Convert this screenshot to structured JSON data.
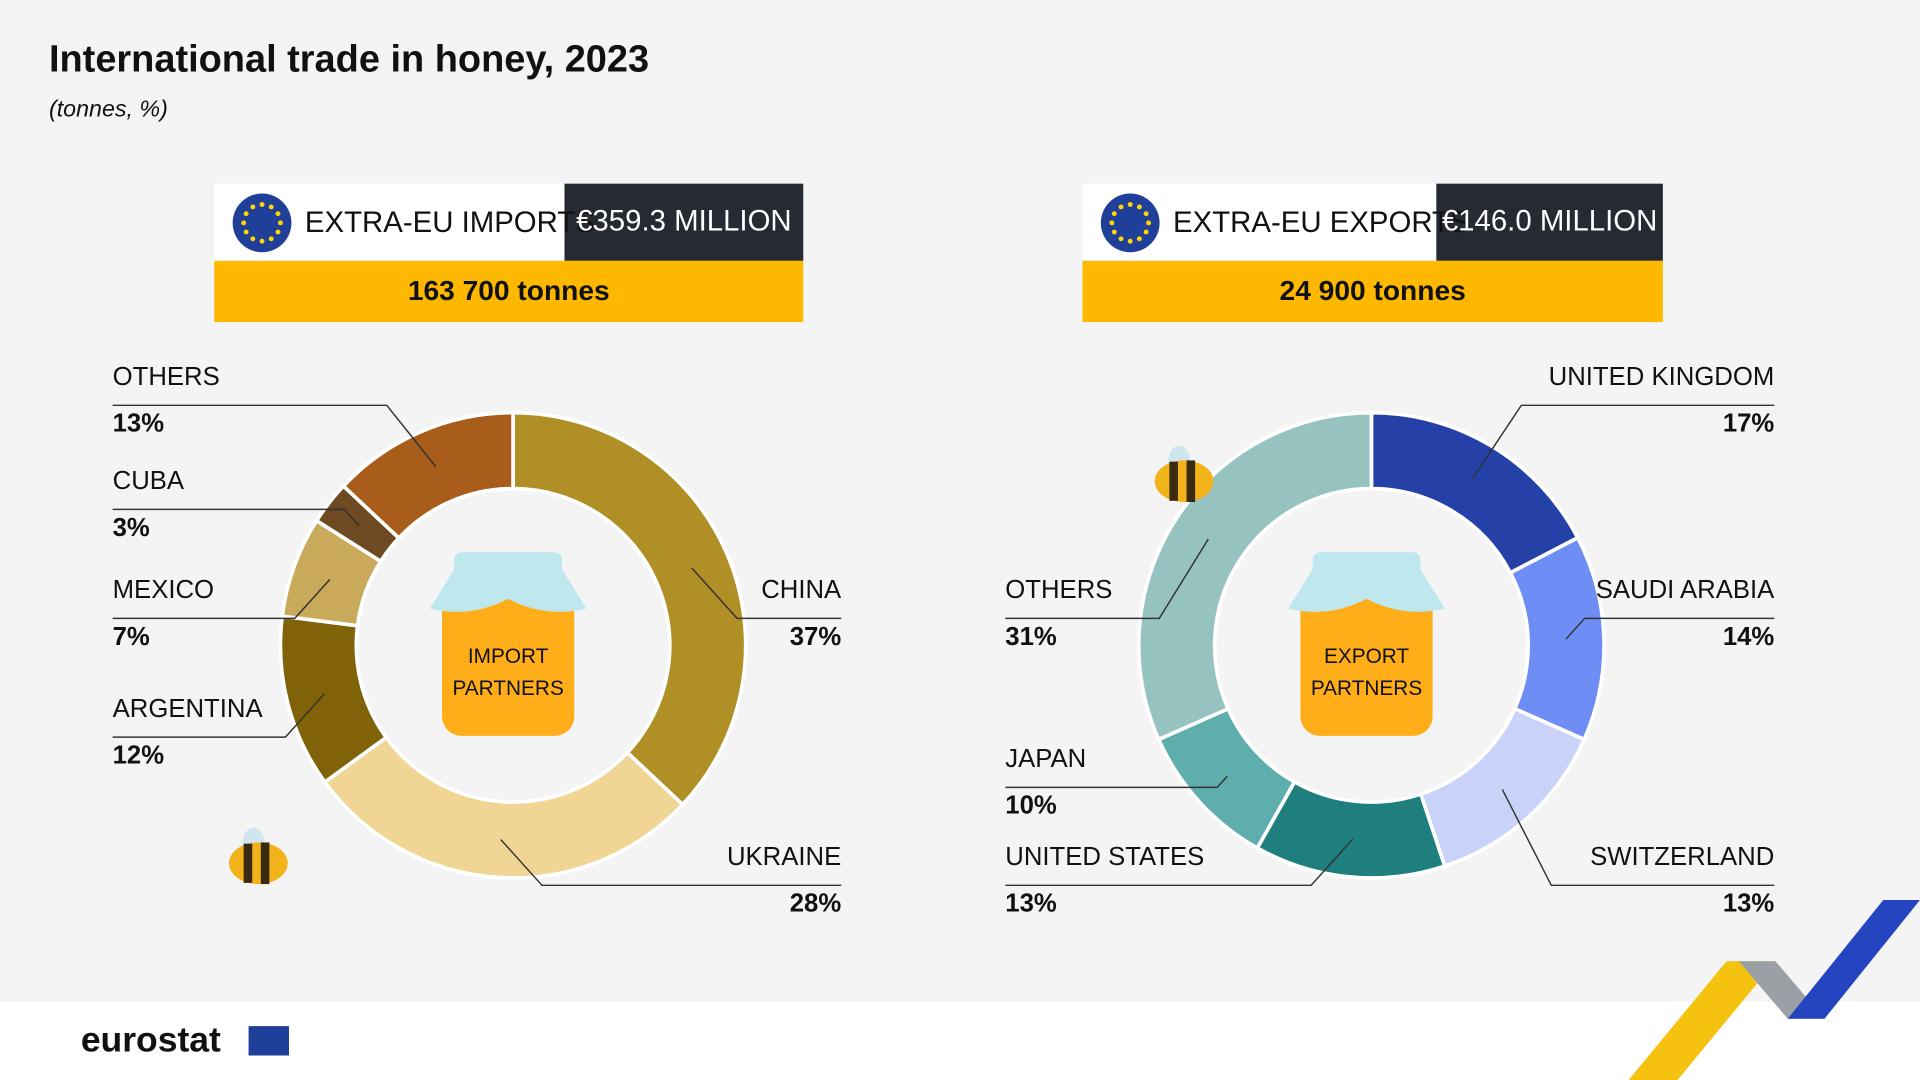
{
  "title": "International trade in honey, 2023",
  "subtitle": "(tonnes, %)",
  "logo": "eurostat",
  "chart_data": [
    {
      "type": "donut",
      "header": "EXTRA-EU IMPORTS",
      "amount": "€359.3 MILLION",
      "volume": "163 700 tonnes",
      "center_label": [
        "IMPORT",
        "PARTNERS"
      ],
      "categories": [
        "CHINA",
        "UKRAINE",
        "ARGENTINA",
        "MEXICO",
        "CUBA",
        "OTHERS"
      ],
      "values": [
        37,
        28,
        12,
        7,
        3,
        13
      ],
      "value_labels": [
        "37%",
        "28%",
        "12%",
        "7%",
        "3%",
        "13%"
      ],
      "colors": [
        "#b08f26",
        "#f0d594",
        "#806208",
        "#c9aa5a",
        "#6e4a22",
        "#a95d1b"
      ]
    },
    {
      "type": "donut",
      "header": "EXTRA-EU EXPORTS",
      "amount": "€146.0 MILLION",
      "volume": "24 900 tonnes",
      "center_label": [
        "EXPORT",
        "PARTNERS"
      ],
      "categories": [
        "UNITED KINGDOM",
        "SAUDI ARABIA",
        "SWITZERLAND",
        "UNITED STATES",
        "JAPAN",
        "OTHERS"
      ],
      "values": [
        17,
        14,
        13,
        13,
        10,
        31
      ],
      "value_labels": [
        "17%",
        "14%",
        "13%",
        "13%",
        "10%",
        "31%"
      ],
      "colors": [
        "#2541a8",
        "#6e8ef5",
        "#c9d3fa",
        "#1f7f7f",
        "#5eaeae",
        "#96c2c0"
      ]
    }
  ]
}
